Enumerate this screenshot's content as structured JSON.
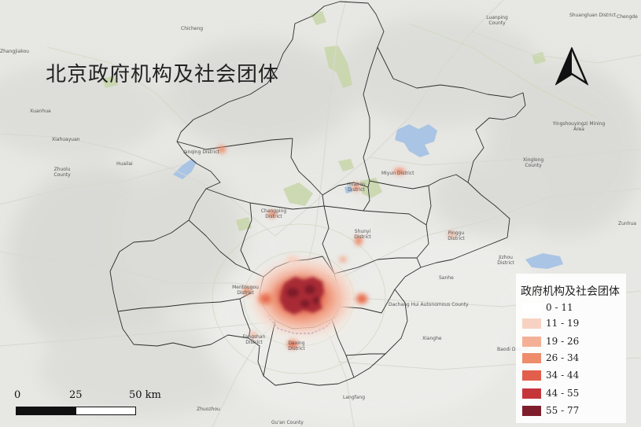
{
  "title": "北京政府机构及社会团体",
  "north_arrow_icon": "north-arrow-icon",
  "legend": {
    "title": "政府机构及社会团体",
    "classes": [
      {
        "label": "0 - 11",
        "color": "#ffffff"
      },
      {
        "label": "11 - 19",
        "color": "#f7d2c3"
      },
      {
        "label": "19 - 26",
        "color": "#f3b096"
      },
      {
        "label": "26 - 34",
        "color": "#ee8c6c"
      },
      {
        "label": "34 - 44",
        "color": "#e25f4c"
      },
      {
        "label": "44 - 55",
        "color": "#c5363b"
      },
      {
        "label": "55 - 77",
        "color": "#7e1e2c"
      }
    ]
  },
  "scale_bar": {
    "labels": [
      "0",
      "25",
      "50 km"
    ]
  },
  "places": [
    {
      "key": "chicheng",
      "label": "Chicheng"
    },
    {
      "key": "luanping",
      "label": "Luanping County"
    },
    {
      "key": "shuangluan",
      "label": "Shuangluan District"
    },
    {
      "key": "chengde",
      "label": "Chengde"
    },
    {
      "key": "xuanhua",
      "label": "Xuanhua"
    },
    {
      "key": "xiahuayuan",
      "label": "Xiahuayuan"
    },
    {
      "key": "huailai",
      "label": "Huailai"
    },
    {
      "key": "zhuolu",
      "label": "Zhuolu County"
    },
    {
      "key": "yanqing",
      "label": "Yanqing District"
    },
    {
      "key": "miyun",
      "label": "Miyun District"
    },
    {
      "key": "huairou",
      "label": "Huairou District"
    },
    {
      "key": "yingshouyingzi",
      "label": "Yingshouyingzi Mining Area"
    },
    {
      "key": "xinglong",
      "label": "Xinglong County"
    },
    {
      "key": "changping",
      "label": "Changping District"
    },
    {
      "key": "shunyi",
      "label": "Shunyi District"
    },
    {
      "key": "pinggu",
      "label": "Pinggu District"
    },
    {
      "key": "jizhou",
      "label": "Jizhou District"
    },
    {
      "key": "zunhua",
      "label": "Zunhua"
    },
    {
      "key": "sanhe",
      "label": "Sanhe"
    },
    {
      "key": "dachang",
      "label": "Dachang Hui Autonomous County"
    },
    {
      "key": "mentougou",
      "label": "Mentougou District"
    },
    {
      "key": "fangshan",
      "label": "Fangshan District"
    },
    {
      "key": "daxing",
      "label": "Daxing District"
    },
    {
      "key": "xianghe",
      "label": "Xianghe"
    },
    {
      "key": "baodi",
      "label": "Baodi District"
    },
    {
      "key": "langfang",
      "label": "Langfang"
    },
    {
      "key": "zhuozhou",
      "label": "Zhuozhou"
    },
    {
      "key": "guan",
      "label": "Gu'an County"
    },
    {
      "key": "zhangjiakou",
      "label": "Zhangjiakou"
    }
  ]
}
